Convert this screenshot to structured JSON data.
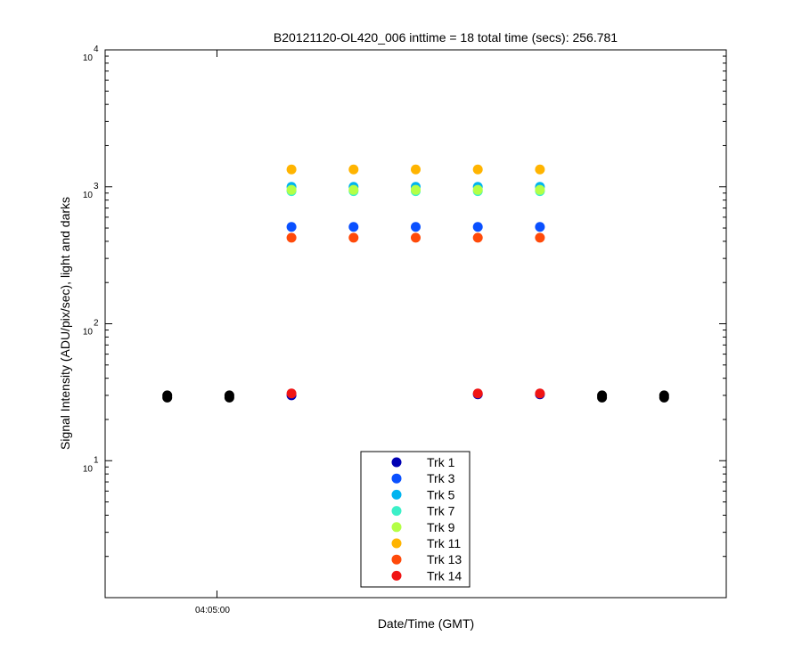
{
  "chart_data": {
    "type": "scatter",
    "title": "B20121120-OL420_006 inttime = 18 total time (secs): 256.781",
    "xlabel": "Date/Time (GMT)",
    "ylabel": "Signal Intensity (ADU/pix/sec), light and darks",
    "y_scale": "log",
    "ylim": [
      1,
      10000
    ],
    "xlim": [
      0,
      10
    ],
    "y_ticks": [
      {
        "base": "10",
        "exp": "1",
        "value": 10
      },
      {
        "base": "10",
        "exp": "2",
        "value": 100
      },
      {
        "base": "10",
        "exp": "3",
        "value": 1000
      },
      {
        "base": "10",
        "exp": "4",
        "value": 10000
      }
    ],
    "x_ticks": [
      {
        "label": "04:05:00",
        "x": 1.8
      }
    ],
    "legend_position": "bottom-center",
    "dark_color": "#000000",
    "dark_points": {
      "x": [
        1,
        2,
        8,
        9
      ],
      "y": [
        30,
        30,
        30,
        30
      ]
    },
    "series": [
      {
        "name": "Trk 1",
        "color": "#0000b4",
        "x": [
          3,
          6,
          7
        ],
        "y": [
          30,
          30.5,
          30.5
        ]
      },
      {
        "name": "Trk 3",
        "color": "#0a50ff",
        "x": [
          3,
          4,
          5,
          6,
          7
        ],
        "y": [
          510,
          510,
          510,
          510,
          510
        ]
      },
      {
        "name": "Trk 5",
        "color": "#00b4f0",
        "x": [
          3,
          4,
          5,
          6,
          7
        ],
        "y": [
          1000,
          1000,
          1000,
          1000,
          1000
        ]
      },
      {
        "name": "Trk 7",
        "color": "#3cf0c8",
        "x": [
          3,
          4,
          5,
          6,
          7
        ],
        "y": [
          930,
          930,
          930,
          930,
          930
        ]
      },
      {
        "name": "Trk 9",
        "color": "#b4ff46",
        "x": [
          3,
          4,
          5,
          6,
          7
        ],
        "y": [
          950,
          950,
          950,
          950,
          950
        ]
      },
      {
        "name": "Trk 11",
        "color": "#ffb400",
        "x": [
          3,
          4,
          5,
          6,
          7
        ],
        "y": [
          1340,
          1340,
          1340,
          1340,
          1340
        ]
      },
      {
        "name": "Trk 13",
        "color": "#ff4a0a",
        "x": [
          3,
          4,
          5,
          6,
          7
        ],
        "y": [
          425,
          425,
          425,
          425,
          425
        ]
      },
      {
        "name": "Trk 14",
        "color": "#f01414",
        "x": [
          3,
          6,
          7
        ],
        "y": [
          31,
          31,
          31
        ]
      }
    ]
  }
}
